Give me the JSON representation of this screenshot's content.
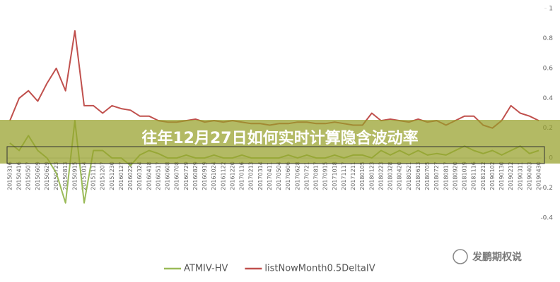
{
  "chart_data": {
    "type": "line",
    "title": "往年12月27日如何实时计算隐含波动率",
    "watermark": "发鹏期权说",
    "categories": [
      "20150316",
      "20150416",
      "20150507",
      "20150609",
      "20150629",
      "20150723",
      "20150813",
      "20150915",
      "20151014",
      "20151111",
      "20151207",
      "20151230",
      "20160127",
      "20160224",
      "20160324",
      "20160418",
      "20160517",
      "20160608",
      "20160708",
      "20160729",
      "20160829",
      "20160919",
      "20161024",
      "20161122",
      "20161220",
      "20170116",
      "20170213",
      "20170314",
      "20170411",
      "20170504",
      "20170606",
      "20170628",
      "20170721",
      "20170817",
      "20170915",
      "20171018",
      "20171117",
      "20171211",
      "20180105",
      "20180123",
      "20180223",
      "20180328",
      "20180420",
      "20180521",
      "20180613",
      "20180705",
      "20180727",
      "20180817",
      "20180920",
      "20181019",
      "20181116",
      "20181212",
      "20190102",
      "20190130",
      "20190212",
      "20190311",
      "20190403",
      "20190430"
    ],
    "series": [
      {
        "name": "ATMIV-HV",
        "color": "#9bbb59",
        "values": [
          0.1,
          0.05,
          0.15,
          0.05,
          0.0,
          -0.1,
          -0.3,
          0.25,
          -0.3,
          0.05,
          0.05,
          0.0,
          0.0,
          -0.05,
          0.02,
          0.05,
          0.03,
          0.0,
          0.0,
          0.02,
          0.0,
          0.0,
          0.02,
          0.0,
          0.0,
          0.02,
          0.0,
          0.0,
          0.0,
          0.0,
          0.02,
          0.0,
          0.02,
          0.0,
          0.0,
          0.02,
          0.0,
          0.02,
          0.02,
          0.0,
          0.05,
          0.02,
          0.05,
          0.02,
          0.05,
          0.02,
          0.03,
          0.02,
          0.05,
          0.08,
          0.05,
          0.03,
          0.05,
          0.02,
          0.05,
          0.08,
          0.03,
          0.05
        ]
      },
      {
        "name": "listNowMonth0.5DeltaIV",
        "color": "#c0504d",
        "values": [
          0.25,
          0.4,
          0.45,
          0.38,
          0.5,
          0.6,
          0.45,
          0.85,
          0.35,
          0.35,
          0.3,
          0.35,
          0.33,
          0.32,
          0.28,
          0.28,
          0.25,
          0.24,
          0.24,
          0.25,
          0.26,
          0.24,
          0.25,
          0.24,
          0.25,
          0.24,
          0.23,
          0.23,
          0.22,
          0.23,
          0.23,
          0.24,
          0.24,
          0.23,
          0.23,
          0.24,
          0.23,
          0.22,
          0.22,
          0.3,
          0.25,
          0.26,
          0.25,
          0.24,
          0.26,
          0.24,
          0.25,
          0.22,
          0.25,
          0.28,
          0.28,
          0.22,
          0.2,
          0.25,
          0.35,
          0.3,
          0.28,
          0.25
        ]
      }
    ],
    "ylim": [
      -0.4,
      1
    ],
    "yticks": [
      -0.4,
      -0.2,
      0,
      0.2,
      0.4,
      0.6,
      0.8,
      1
    ],
    "legend": "bottom"
  }
}
